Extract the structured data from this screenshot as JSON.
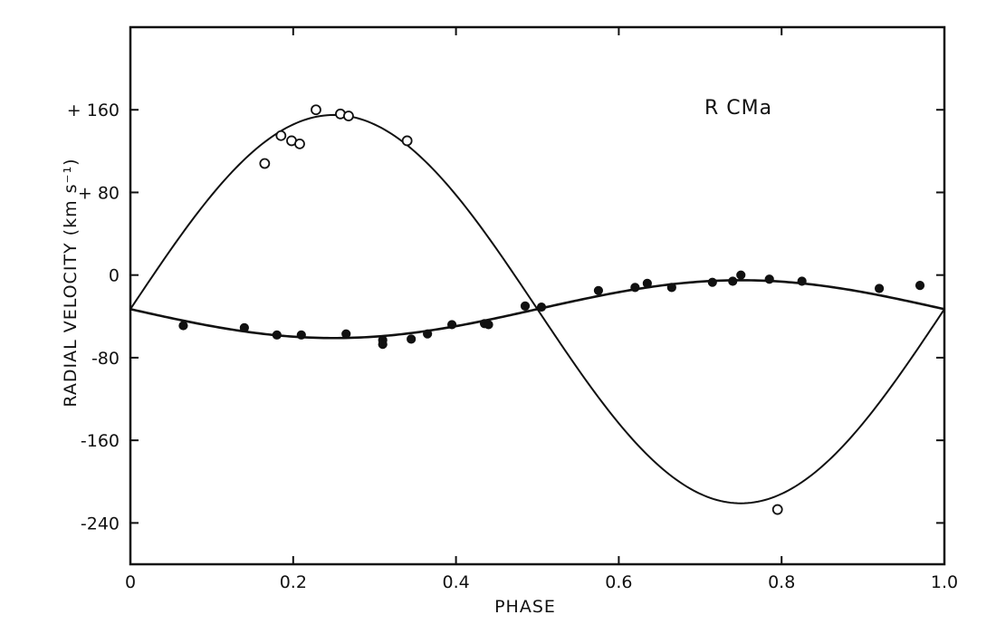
{
  "chart_data": {
    "type": "scatter",
    "title": "",
    "annotation": "R  CMa",
    "xlabel": "PHASE",
    "ylabel": "RADIAL  VELOCITY  (km s⁻¹)",
    "xlim": [
      0,
      1.0
    ],
    "ylim": [
      -280,
      240
    ],
    "x_ticks": [
      0,
      0.2,
      0.4,
      0.6,
      0.8,
      1.0
    ],
    "x_tick_labels": [
      "0",
      "0.2",
      "0.4",
      "0.6",
      "0.8",
      "1.0"
    ],
    "y_ticks": [
      160,
      80,
      0,
      -80,
      -160,
      -240
    ],
    "y_tick_labels": [
      "+ 160",
      "+ 80",
      "0",
      "-80",
      "-160",
      "-240"
    ],
    "grid": false,
    "systemic_velocity": -33,
    "series": [
      {
        "marker": "open-circle",
        "x": [
          0.165,
          0.185,
          0.198,
          0.208,
          0.228,
          0.258,
          0.268,
          0.34,
          0.795
        ],
        "y": [
          108,
          135,
          130,
          127,
          160,
          156,
          154,
          130,
          -227
        ]
      },
      {
        "marker": "filled-circle",
        "x": [
          0.065,
          0.14,
          0.18,
          0.21,
          0.265,
          0.31,
          0.31,
          0.345,
          0.365,
          0.395,
          0.435,
          0.44,
          0.485,
          0.505,
          0.575,
          0.62,
          0.635,
          0.665,
          0.715,
          0.74,
          0.75,
          0.785,
          0.825,
          0.92,
          0.97
        ],
        "y": [
          -49,
          -51,
          -58,
          -58,
          -57,
          -63,
          -67,
          -62,
          -57,
          -48,
          -47,
          -48,
          -30,
          -31,
          -15,
          -12,
          -8,
          -12,
          -7,
          -6,
          0,
          -4,
          -6,
          -13,
          -10
        ]
      }
    ],
    "fit_curves": [
      {
        "shape": "sine",
        "gamma": -33,
        "amplitude": 188
      },
      {
        "shape": "sine",
        "gamma": -33,
        "amplitude": -28
      }
    ]
  }
}
